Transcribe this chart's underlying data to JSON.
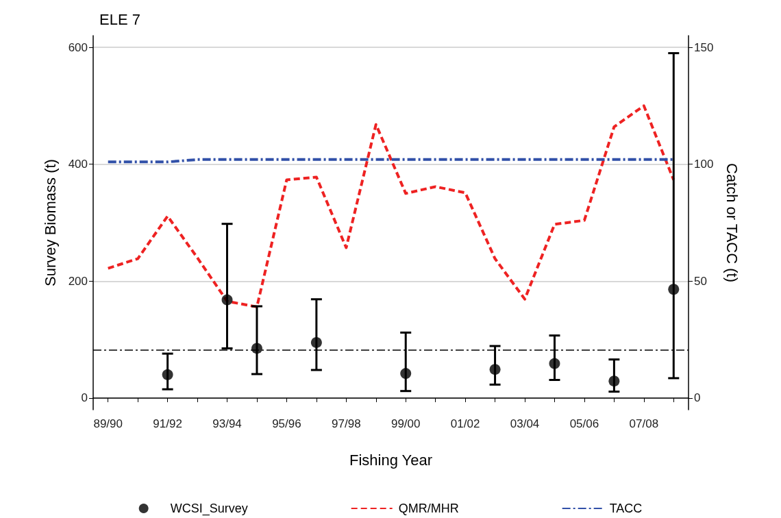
{
  "chart_data": {
    "type": "line",
    "title": "ELE 7",
    "xlabel": "Fishing Year",
    "ylabel": "Survey Biomass (t)",
    "y2label": "Catch or TACC (t)",
    "categories": [
      "89/90",
      null,
      "91/92",
      null,
      "93/94",
      null,
      "95/96",
      null,
      "97/98",
      null,
      "99/00",
      null,
      "01/02",
      null,
      "03/04",
      null,
      "05/06",
      null,
      "07/08",
      null
    ],
    "series": [
      {
        "name": "WCSI_Survey",
        "type": "scatter",
        "color": "#000000",
        "marker": "circle",
        "values": [
          null,
          null,
          40,
          null,
          168,
          85,
          null,
          95,
          null,
          null,
          42,
          null,
          null,
          49,
          null,
          59,
          null,
          29,
          null,
          186
        ],
        "errors": [
          null,
          null,
          [
            15,
            76
          ],
          null,
          [
            85,
            298
          ],
          [
            41,
            157
          ],
          null,
          [
            48,
            169
          ],
          null,
          null,
          [
            12,
            112
          ],
          null,
          null,
          [
            23,
            89
          ],
          null,
          [
            31,
            107
          ],
          null,
          [
            11,
            66
          ],
          null,
          [
            34,
            590
          ]
        ]
      },
      {
        "name": "QMR/MHR",
        "axis": "y2",
        "color": "#ee2222",
        "line_style": "dashed",
        "marker": "none",
        "values": [
          55.5,
          59.6,
          77.8,
          60,
          41.4,
          39,
          93.3,
          94.5,
          64.3,
          117,
          87.5,
          90.4,
          87.8,
          59.6,
          42.3,
          74.3,
          76,
          116,
          125,
          93.3
        ]
      },
      {
        "name": "TACC",
        "axis": "y2",
        "color": "#3150a8",
        "line_style": "dashdot",
        "marker": "none",
        "values": [
          101,
          101,
          101,
          102,
          102,
          102,
          102,
          102,
          102,
          102,
          102,
          102,
          102,
          102,
          102,
          102,
          102,
          102,
          102,
          102
        ]
      }
    ],
    "ylim": [
      -20,
      620
    ],
    "yticks": [
      0,
      200,
      400,
      600
    ],
    "y2lim": [
      -5,
      155
    ],
    "y2ticks": [
      0,
      50,
      100,
      150
    ],
    "ref_lines": [
      {
        "axis": "y",
        "value": 82,
        "color": "#000000",
        "line_style": "dashdot"
      }
    ],
    "grid": "y",
    "legend": "bottom"
  }
}
